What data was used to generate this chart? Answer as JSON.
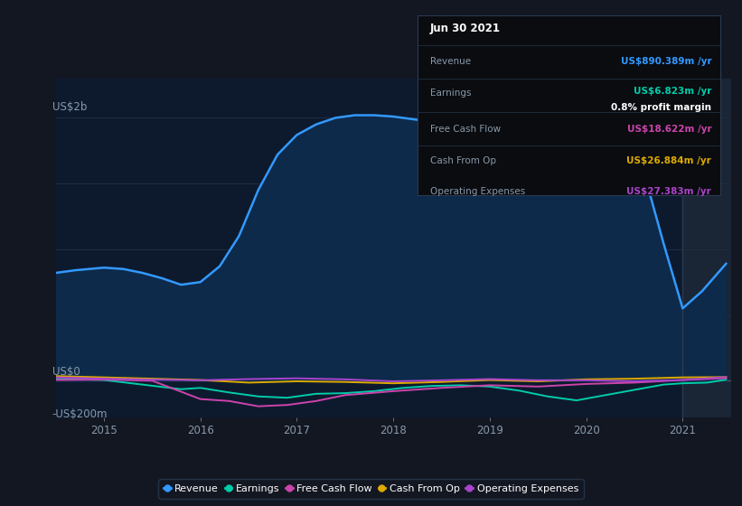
{
  "bg_color": "#131722",
  "plot_bg_color": "#0d1a2e",
  "plot_bg_right": "#1a2535",
  "grid_color": "#1e2d45",
  "ylabel_us2b": "US$2b",
  "ylabel_us0": "US$0",
  "ylabel_neg200m": "-US$200m",
  "x_ticks": [
    2015,
    2016,
    2017,
    2018,
    2019,
    2020,
    2021
  ],
  "ylim_min": -280000000,
  "ylim_max": 2300000000,
  "tooltip": {
    "date": "Jun 30 2021",
    "revenue_label": "Revenue",
    "revenue_value": "US$890.389m /yr",
    "revenue_color": "#3399ff",
    "earnings_label": "Earnings",
    "earnings_value": "US$6.823m /yr",
    "earnings_color": "#00ccaa",
    "profit_margin": "0.8% profit margin",
    "fcf_label": "Free Cash Flow",
    "fcf_value": "US$18.622m /yr",
    "fcf_color": "#cc44aa",
    "cashop_label": "Cash From Op",
    "cashop_value": "US$26.884m /yr",
    "cashop_color": "#ddaa00",
    "opex_label": "Operating Expenses",
    "opex_value": "US$27.383m /yr",
    "opex_color": "#aa44cc"
  },
  "legend_items": [
    {
      "label": "Revenue",
      "color": "#3399ff"
    },
    {
      "label": "Earnings",
      "color": "#00ccaa"
    },
    {
      "label": "Free Cash Flow",
      "color": "#cc44aa"
    },
    {
      "label": "Cash From Op",
      "color": "#ddaa00"
    },
    {
      "label": "Operating Expenses",
      "color": "#aa44cc"
    }
  ],
  "revenue_color": "#3399ff",
  "earnings_color": "#00ccaa",
  "fcf_color": "#cc44aa",
  "cashop_color": "#ddaa00",
  "opex_color": "#aa44cc",
  "revenue_x": [
    2014.5,
    2014.7,
    2015.0,
    2015.2,
    2015.4,
    2015.6,
    2015.8,
    2016.0,
    2016.2,
    2016.4,
    2016.6,
    2016.8,
    2017.0,
    2017.2,
    2017.4,
    2017.6,
    2017.8,
    2018.0,
    2018.2,
    2018.4,
    2018.6,
    2018.8,
    2019.0,
    2019.2,
    2019.4,
    2019.6,
    2019.8,
    2020.0,
    2020.2,
    2020.4,
    2020.6,
    2020.8,
    2021.0,
    2021.2,
    2021.45
  ],
  "revenue_y": [
    820000000,
    840000000,
    860000000,
    850000000,
    820000000,
    780000000,
    730000000,
    750000000,
    870000000,
    1100000000,
    1450000000,
    1720000000,
    1870000000,
    1950000000,
    2000000000,
    2020000000,
    2020000000,
    2010000000,
    1990000000,
    1970000000,
    1950000000,
    1920000000,
    1870000000,
    1820000000,
    1800000000,
    1780000000,
    1740000000,
    1760000000,
    1740000000,
    1700000000,
    1580000000,
    1050000000,
    550000000,
    680000000,
    890000000
  ],
  "earnings_x": [
    2014.5,
    2015.0,
    2015.4,
    2015.8,
    2016.0,
    2016.3,
    2016.6,
    2016.9,
    2017.2,
    2017.5,
    2017.8,
    2018.1,
    2018.4,
    2018.7,
    2019.0,
    2019.3,
    2019.6,
    2019.9,
    2020.2,
    2020.5,
    2020.8,
    2021.0,
    2021.25,
    2021.45
  ],
  "earnings_y": [
    15000000,
    5000000,
    -30000000,
    -65000000,
    -55000000,
    -90000000,
    -120000000,
    -130000000,
    -100000000,
    -95000000,
    -80000000,
    -55000000,
    -40000000,
    -35000000,
    -45000000,
    -75000000,
    -120000000,
    -150000000,
    -110000000,
    -70000000,
    -30000000,
    -20000000,
    -15000000,
    7000000
  ],
  "fcf_x": [
    2014.5,
    2015.0,
    2015.5,
    2016.0,
    2016.3,
    2016.6,
    2016.9,
    2017.2,
    2017.5,
    2018.0,
    2018.5,
    2019.0,
    2019.5,
    2020.0,
    2020.5,
    2021.0,
    2021.45
  ],
  "fcf_y": [
    5000000,
    8000000,
    0,
    -140000000,
    -155000000,
    -195000000,
    -185000000,
    -155000000,
    -110000000,
    -80000000,
    -55000000,
    -35000000,
    -45000000,
    -25000000,
    -15000000,
    5000000,
    19000000
  ],
  "cashop_x": [
    2014.5,
    2015.0,
    2015.5,
    2016.0,
    2016.5,
    2017.0,
    2017.5,
    2018.0,
    2018.5,
    2019.0,
    2019.5,
    2020.0,
    2020.5,
    2021.0,
    2021.45
  ],
  "cashop_y": [
    35000000,
    25000000,
    15000000,
    5000000,
    -15000000,
    -5000000,
    -10000000,
    -20000000,
    -10000000,
    5000000,
    -5000000,
    10000000,
    15000000,
    25000000,
    27000000
  ],
  "opex_x": [
    2014.5,
    2015.0,
    2015.5,
    2016.0,
    2016.5,
    2017.0,
    2017.5,
    2018.0,
    2018.5,
    2019.0,
    2019.5,
    2020.0,
    2020.5,
    2021.0,
    2021.45
  ],
  "opex_y": [
    25000000,
    15000000,
    8000000,
    3000000,
    12000000,
    18000000,
    10000000,
    -5000000,
    3000000,
    12000000,
    3000000,
    3000000,
    -5000000,
    5000000,
    27000000
  ],
  "vline_x": 2021.0,
  "xlim_left": 2014.5,
  "xlim_right": 2021.5
}
